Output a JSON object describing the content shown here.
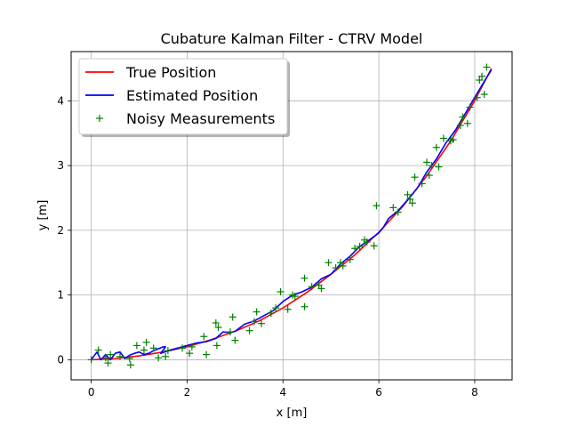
{
  "chart_data": {
    "type": "line",
    "title": "Cubature Kalman Filter - CTRV Model",
    "xlabel": "x [m]",
    "ylabel": "y [m]",
    "xlim": [
      -0.42,
      8.78
    ],
    "ylim": [
      -0.31,
      4.76
    ],
    "xticks": [
      0,
      2,
      4,
      6,
      8
    ],
    "yticks": [
      0,
      1,
      2,
      3,
      4
    ],
    "grid": true,
    "legend_position": "top-left",
    "series": [
      {
        "name": "True Position",
        "kind": "line",
        "color": "#ff0000",
        "x": [
          0,
          0.5,
          1.0,
          1.5,
          2.0,
          2.5,
          3.0,
          3.5,
          4.0,
          4.5,
          5.0,
          5.5,
          6.0,
          6.5,
          7.0,
          7.5,
          8.0,
          8.35
        ],
        "y": [
          0,
          0.02,
          0.06,
          0.12,
          0.2,
          0.31,
          0.44,
          0.6,
          0.8,
          1.04,
          1.32,
          1.62,
          1.97,
          2.37,
          2.84,
          3.38,
          4.0,
          4.5
        ]
      },
      {
        "name": "Estimated Position",
        "kind": "line",
        "color": "#0000ff",
        "x": [
          0,
          0.12,
          0.2,
          0.3,
          0.4,
          0.5,
          0.6,
          0.7,
          0.8,
          0.9,
          1.0,
          1.1,
          1.2,
          1.3,
          1.4,
          1.5,
          1.55,
          1.45,
          1.6,
          1.8,
          2.0,
          2.2,
          2.4,
          2.6,
          2.75,
          2.9,
          3.0,
          3.2,
          3.4,
          3.6,
          3.8,
          4.0,
          4.2,
          4.4,
          4.6,
          4.8,
          5.0,
          5.2,
          5.4,
          5.6,
          5.8,
          6.0,
          6.1,
          6.2,
          6.4,
          6.6,
          6.8,
          7.0,
          7.2,
          7.4,
          7.6,
          7.8,
          8.0,
          8.2,
          8.35
        ],
        "y": [
          0,
          0.12,
          0.0,
          0.08,
          0.0,
          0.1,
          0.12,
          0.02,
          0.07,
          0.1,
          0.12,
          0.08,
          0.1,
          0.14,
          0.17,
          0.2,
          0.2,
          0.1,
          0.14,
          0.18,
          0.22,
          0.26,
          0.28,
          0.33,
          0.43,
          0.42,
          0.44,
          0.55,
          0.6,
          0.68,
          0.76,
          0.9,
          1.0,
          1.05,
          1.12,
          1.25,
          1.32,
          1.48,
          1.6,
          1.75,
          1.85,
          1.96,
          2.05,
          2.18,
          2.3,
          2.47,
          2.65,
          2.9,
          3.1,
          3.35,
          3.55,
          3.8,
          4.05,
          4.3,
          4.48
        ]
      },
      {
        "name": "Noisy Measurements",
        "kind": "scatter",
        "color": "#008000",
        "x": [
          0.0,
          0.15,
          0.3,
          0.35,
          0.4,
          0.6,
          0.8,
          0.82,
          0.95,
          1.1,
          1.15,
          1.3,
          1.4,
          1.55,
          1.6,
          1.9,
          2.05,
          2.1,
          2.35,
          2.4,
          2.6,
          2.62,
          2.65,
          2.9,
          2.95,
          3.0,
          3.3,
          3.4,
          3.45,
          3.55,
          3.75,
          3.85,
          3.95,
          4.1,
          4.2,
          4.25,
          4.45,
          4.45,
          4.6,
          4.75,
          4.8,
          4.95,
          5.1,
          5.2,
          5.25,
          5.4,
          5.5,
          5.6,
          5.7,
          5.75,
          5.9,
          5.95,
          6.3,
          6.4,
          6.6,
          6.65,
          6.7,
          6.75,
          6.9,
          7.0,
          7.05,
          7.1,
          7.2,
          7.25,
          7.35,
          7.5,
          7.55,
          7.7,
          7.75,
          7.85,
          7.9,
          8.05,
          8.1,
          8.15,
          8.2,
          8.25
        ],
        "y": [
          0.0,
          0.15,
          0.03,
          -0.05,
          0.08,
          0.05,
          0.02,
          -0.08,
          0.22,
          0.15,
          0.27,
          0.18,
          0.03,
          0.05,
          0.14,
          0.18,
          0.1,
          0.2,
          0.36,
          0.08,
          0.57,
          0.22,
          0.5,
          0.43,
          0.66,
          0.3,
          0.45,
          0.59,
          0.74,
          0.56,
          0.72,
          0.8,
          1.05,
          0.78,
          1.0,
          0.98,
          1.26,
          0.82,
          1.13,
          1.15,
          1.1,
          1.5,
          1.42,
          1.5,
          1.45,
          1.55,
          1.72,
          1.75,
          1.85,
          1.82,
          1.76,
          2.38,
          2.35,
          2.28,
          2.55,
          2.48,
          2.42,
          2.82,
          2.72,
          3.05,
          2.85,
          3.0,
          3.28,
          2.98,
          3.42,
          3.38,
          3.4,
          3.62,
          3.75,
          3.65,
          3.9,
          4.05,
          4.32,
          4.38,
          4.1,
          4.52
        ]
      }
    ]
  }
}
